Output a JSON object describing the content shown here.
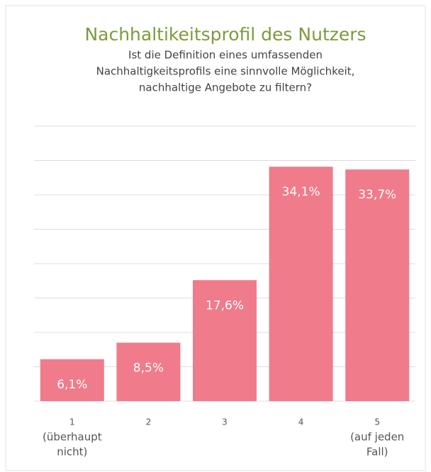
{
  "chart_data": {
    "type": "bar",
    "title": "Nachhaltikeitsprofil des Nutzers",
    "subtitle": [
      "Ist die Definition eines umfassenden",
      "Nachhaltigkeitsprofils eine sinnvolle Möglichkeit,",
      "nachhaltige Angebote zu filtern?"
    ],
    "categories": [
      [
        "1",
        "(überhaupt",
        "nicht)"
      ],
      [
        "2"
      ],
      [
        "3"
      ],
      [
        "4"
      ],
      [
        "5",
        "(auf jeden",
        "Fall)"
      ]
    ],
    "values": [
      6.1,
      8.5,
      17.6,
      34.1,
      33.7
    ],
    "value_labels": [
      "6,1%",
      "8,5%",
      "17,6%",
      "34,1%",
      "33,7%"
    ],
    "color": "#f07b8b",
    "ylim": [
      0,
      40
    ],
    "yticks": [
      0,
      5,
      10,
      15,
      20,
      25,
      30,
      35,
      40
    ],
    "grid": true
  }
}
